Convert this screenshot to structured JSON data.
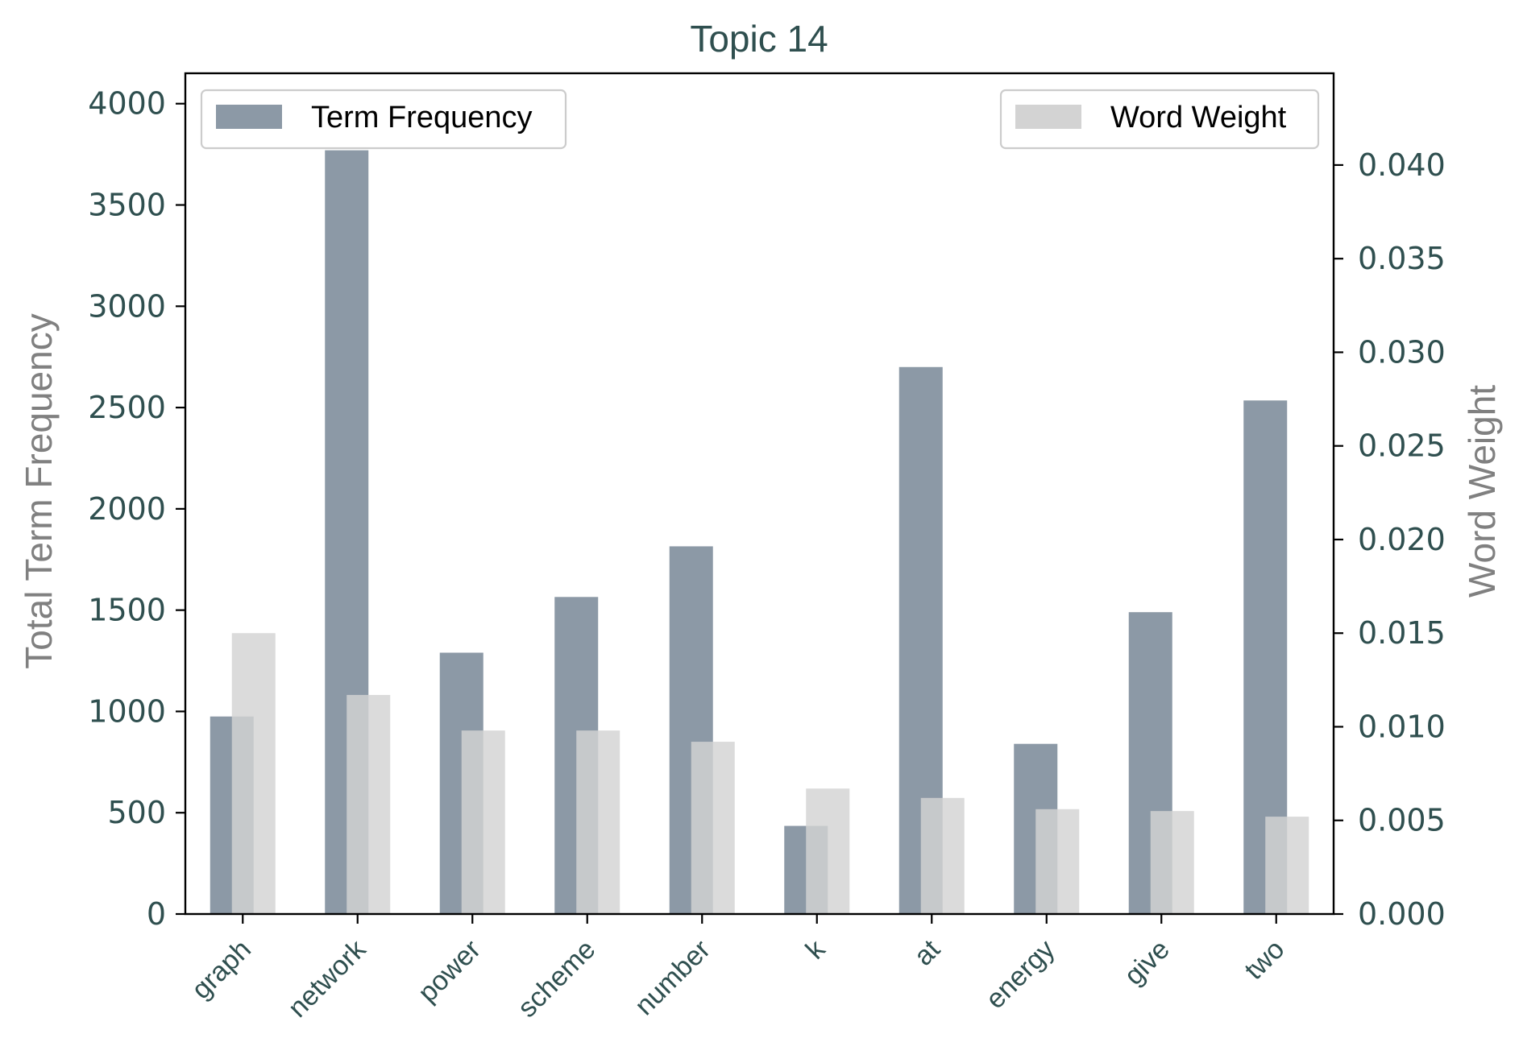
{
  "chart_data": {
    "type": "bar",
    "title": "Topic 14",
    "categories": [
      "graph",
      "network",
      "power",
      "scheme",
      "number",
      "k",
      "at",
      "energy",
      "give",
      "two"
    ],
    "series": [
      {
        "name": "Term Frequency",
        "axis": "left",
        "color": "#8c99a6",
        "values": [
          975,
          3770,
          1290,
          1565,
          1815,
          435,
          2700,
          840,
          1490,
          2535
        ]
      },
      {
        "name": "Word Weight",
        "axis": "right",
        "color": "#d3d3d3",
        "values": [
          0.015,
          0.0117,
          0.0098,
          0.0098,
          0.0092,
          0.0067,
          0.0062,
          0.0056,
          0.0055,
          0.0052
        ]
      }
    ],
    "ylabel": "Total Term Frequency",
    "ylim": [
      0,
      4150
    ],
    "yticks": [
      0,
      500,
      1000,
      1500,
      2000,
      2500,
      3000,
      3500,
      4000
    ],
    "y2label": "Word Weight",
    "y2lim": [
      0,
      0.0449
    ],
    "y2ticks": [
      "0.000",
      "0.005",
      "0.010",
      "0.015",
      "0.020",
      "0.025",
      "0.030",
      "0.035",
      "0.040"
    ],
    "grid": false,
    "legend": [
      {
        "label": "Term Frequency",
        "placement": "top-left"
      },
      {
        "label": "Word Weight",
        "placement": "top-right"
      }
    ],
    "colors": {
      "text": "#2f4f4f",
      "axis_label": "#808080",
      "axes": "#000000"
    }
  }
}
